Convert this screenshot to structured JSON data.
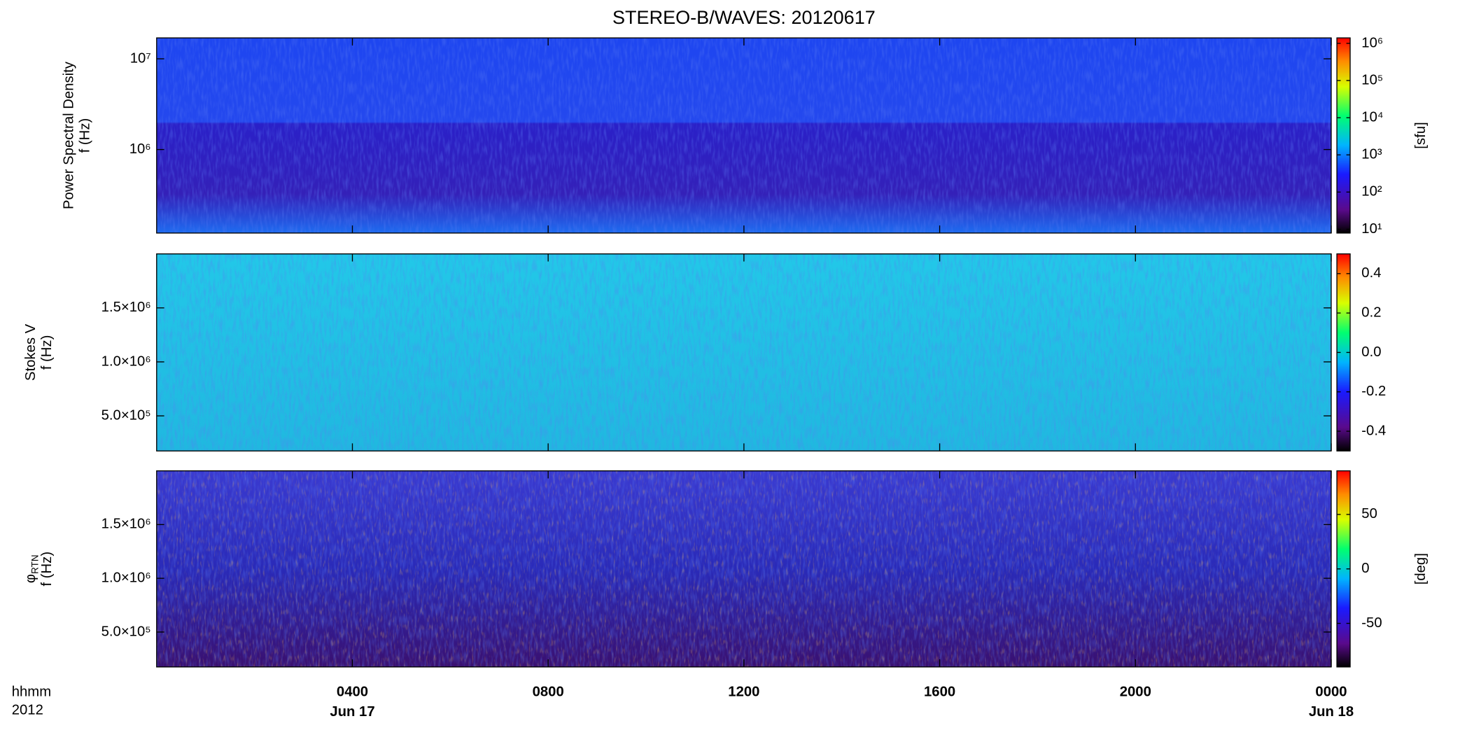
{
  "title": "STEREO-B/WAVES: 20120617",
  "x_axis": {
    "xlim": [
      0,
      24
    ],
    "xticks": [
      {
        "value": 4,
        "label": "0400"
      },
      {
        "value": 8,
        "label": "0800"
      },
      {
        "value": 12,
        "label": "1200"
      },
      {
        "value": 16,
        "label": "1600"
      },
      {
        "value": 20,
        "label": "2000"
      },
      {
        "value": 24,
        "label": "0000"
      }
    ],
    "date_labels": [
      {
        "value": 4,
        "label": "Jun 17"
      },
      {
        "value": 24,
        "label": "Jun 18"
      }
    ],
    "unit_label": "hhmm",
    "year_label": "2012"
  },
  "chart_data": [
    {
      "type": "heatmap",
      "ylabel": [
        {
          "text": "Power Spectral Density"
        },
        {
          "text": "f (Hz)"
        }
      ],
      "log_y": true,
      "ylim": [
        120000,
        17000000
      ],
      "yticks": [
        {
          "value": 1000000,
          "label": "10⁶"
        },
        {
          "value": 10000000,
          "label": "10⁷"
        }
      ],
      "colorbar": {
        "log": true,
        "lim": [
          7.9,
          1400000
        ],
        "ticks": [
          {
            "value": 10,
            "label": "10¹"
          },
          {
            "value": 100,
            "label": "10²"
          },
          {
            "value": 1000,
            "label": "10³"
          },
          {
            "value": 10000,
            "label": "10⁴"
          },
          {
            "value": 100000,
            "label": "10⁵"
          },
          {
            "value": 1000000,
            "label": "10⁶"
          }
        ],
        "label": "[sfu]"
      }
    },
    {
      "type": "heatmap",
      "ylabel": [
        {
          "text": "Stokes V"
        },
        {
          "text": "f (Hz)"
        }
      ],
      "log_y": false,
      "ylim": [
        175000,
        2000000
      ],
      "yticks": [
        {
          "value": 500000,
          "label": "5.0×10⁵"
        },
        {
          "value": 1000000,
          "label": "1.0×10⁶"
        },
        {
          "value": 1500000,
          "label": "1.5×10⁶"
        }
      ],
      "colorbar": {
        "log": false,
        "lim": [
          -0.5,
          0.5
        ],
        "ticks": [
          -0.4,
          -0.2,
          {
            "value": 0,
            "label": "0.0"
          },
          0.2,
          0.4
        ]
      }
    },
    {
      "type": "heatmap",
      "ylabel": [
        {
          "text": "φ",
          "sub": "RTN"
        },
        {
          "text": "f (Hz)"
        }
      ],
      "log_y": false,
      "ylim": [
        175000,
        2000000
      ],
      "yticks": [
        {
          "value": 500000,
          "label": "5.0×10⁵"
        },
        {
          "value": 1000000,
          "label": "1.0×10⁶"
        },
        {
          "value": 1500000,
          "label": "1.5×10⁶"
        }
      ],
      "colorbar": {
        "log": false,
        "lim": [
          -90,
          90
        ],
        "ticks": [
          -50,
          0,
          50
        ],
        "label": "[deg]"
      }
    }
  ]
}
